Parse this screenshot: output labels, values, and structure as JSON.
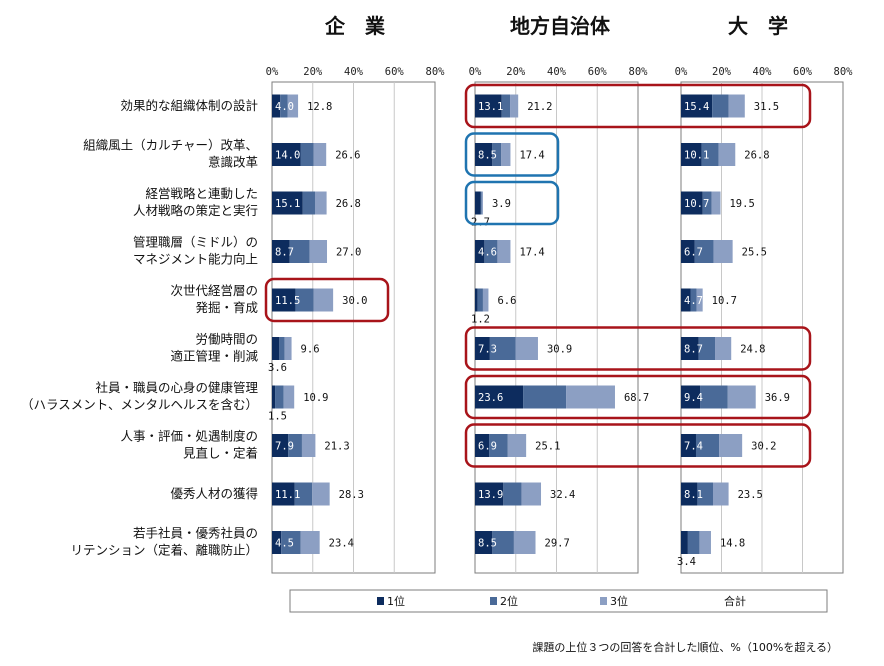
{
  "chart_data": {
    "type": "bar",
    "stacked": true,
    "orientation": "horizontal",
    "panels": [
      "企　業",
      "地方自治体",
      "大　学"
    ],
    "axis_ticks": [
      "0%",
      "20%",
      "40%",
      "60%",
      "80%"
    ],
    "xlim": [
      0,
      80
    ],
    "categories": [
      [
        "効果的な組織体制の設計"
      ],
      [
        "組織風土（カルチャー）改革、",
        "意識改革"
      ],
      [
        "経営戦略と連動した",
        "人材戦略の策定と実行"
      ],
      [
        "管理職層（ミドル）の",
        "マネジメント能力向上"
      ],
      [
        "次世代経営層の",
        "発掘・育成"
      ],
      [
        "労働時間の",
        "適正管理・削減"
      ],
      [
        "社員・職員の心身の健康管理",
        "（ハラスメント、メンタルヘルスを含む）"
      ],
      [
        "人事・評価・処遇制度の",
        "見直し・定着"
      ],
      [
        "優秀人材の獲得"
      ],
      [
        "若手社員・優秀社員の",
        "リテンション（定着、離職防止）"
      ]
    ],
    "series_names": [
      "1位",
      "2位",
      "3位"
    ],
    "total_label": "合計",
    "colors": {
      "rank1": "#0d2c5e",
      "rank2": "#4a6a98",
      "rank3": "#8c9fc3",
      "red": "#a8141a",
      "blue": "#1f74b0",
      "grid": "#c8c8c8",
      "frame": "#7d7d7d"
    },
    "data": [
      {
        "first": [
          4.0,
          14.0,
          15.1,
          8.7,
          11.5,
          3.6,
          1.5,
          7.9,
          11.1,
          4.5
        ],
        "second": [
          3.6,
          6.5,
          6.0,
          9.8,
          9.0,
          2.6,
          4.2,
          6.8,
          8.6,
          9.6
        ],
        "third": [
          5.2,
          6.1,
          5.7,
          8.5,
          9.5,
          3.4,
          5.2,
          6.6,
          8.6,
          9.3
        ],
        "totals": [
          "12.8",
          "26.6",
          "26.8",
          "27.0",
          "30.0",
          "9.6",
          "10.9",
          "21.3",
          "28.3",
          "23.4"
        ],
        "first_labels": [
          "4.0",
          "14.0",
          "15.1",
          "8.7",
          "11.5",
          "3.6",
          "1.5",
          "7.9",
          "11.1",
          "4.5"
        ]
      },
      {
        "first": [
          13.1,
          8.5,
          2.7,
          4.6,
          1.2,
          7.3,
          23.6,
          6.9,
          13.9,
          8.5
        ],
        "second": [
          4.1,
          4.4,
          0.6,
          6.4,
          2.7,
          12.6,
          21.1,
          9.2,
          8.9,
          10.6
        ],
        "third": [
          4.0,
          4.5,
          0.6,
          6.4,
          2.7,
          11.0,
          24.0,
          9.0,
          9.6,
          10.6
        ],
        "totals": [
          "21.2",
          "17.4",
          "3.9",
          "17.4",
          "6.6",
          "30.9",
          "68.7",
          "25.1",
          "32.4",
          "29.7"
        ],
        "first_labels": [
          "13.1",
          "8.5",
          "2.7",
          "4.6",
          "1.2",
          "7.3",
          "23.6",
          "6.9",
          "13.9",
          "8.5"
        ]
      },
      {
        "first": [
          15.4,
          10.1,
          10.7,
          6.7,
          4.7,
          8.7,
          9.4,
          7.4,
          8.1,
          3.4
        ],
        "second": [
          8.1,
          8.4,
          4.4,
          9.4,
          3.0,
          8.1,
          13.7,
          11.4,
          7.7,
          5.7
        ],
        "third": [
          8.0,
          8.3,
          4.4,
          9.4,
          3.0,
          8.0,
          13.8,
          11.4,
          7.7,
          5.7
        ],
        "totals": [
          "31.5",
          "26.8",
          "19.5",
          "25.5",
          "10.7",
          "24.8",
          "36.9",
          "30.2",
          "23.5",
          "14.8"
        ],
        "first_labels": [
          "15.4",
          "10.1",
          "10.7",
          "6.7",
          "4.7",
          "8.7",
          "9.4",
          "7.4",
          "8.1",
          "3.4"
        ]
      }
    ],
    "highlights": [
      {
        "panel": 0,
        "from": 4,
        "to": 4,
        "color": "red"
      },
      {
        "panel": 1,
        "from": 0,
        "to": 0,
        "color": "red",
        "span_to_panel": 2
      },
      {
        "panel": 1,
        "from": 1,
        "to": 1,
        "color": "blue"
      },
      {
        "panel": 1,
        "from": 2,
        "to": 2,
        "color": "blue"
      },
      {
        "panel": 1,
        "from": 5,
        "to": 5,
        "color": "red",
        "span_to_panel": 2
      },
      {
        "panel": 1,
        "from": 6,
        "to": 6,
        "color": "red",
        "span_to_panel": 2
      },
      {
        "panel": 1,
        "from": 7,
        "to": 7,
        "color": "red",
        "span_to_panel": 2
      }
    ],
    "footnote": "課題の上位３つの回答を合計した順位、%（100%を超える）"
  }
}
